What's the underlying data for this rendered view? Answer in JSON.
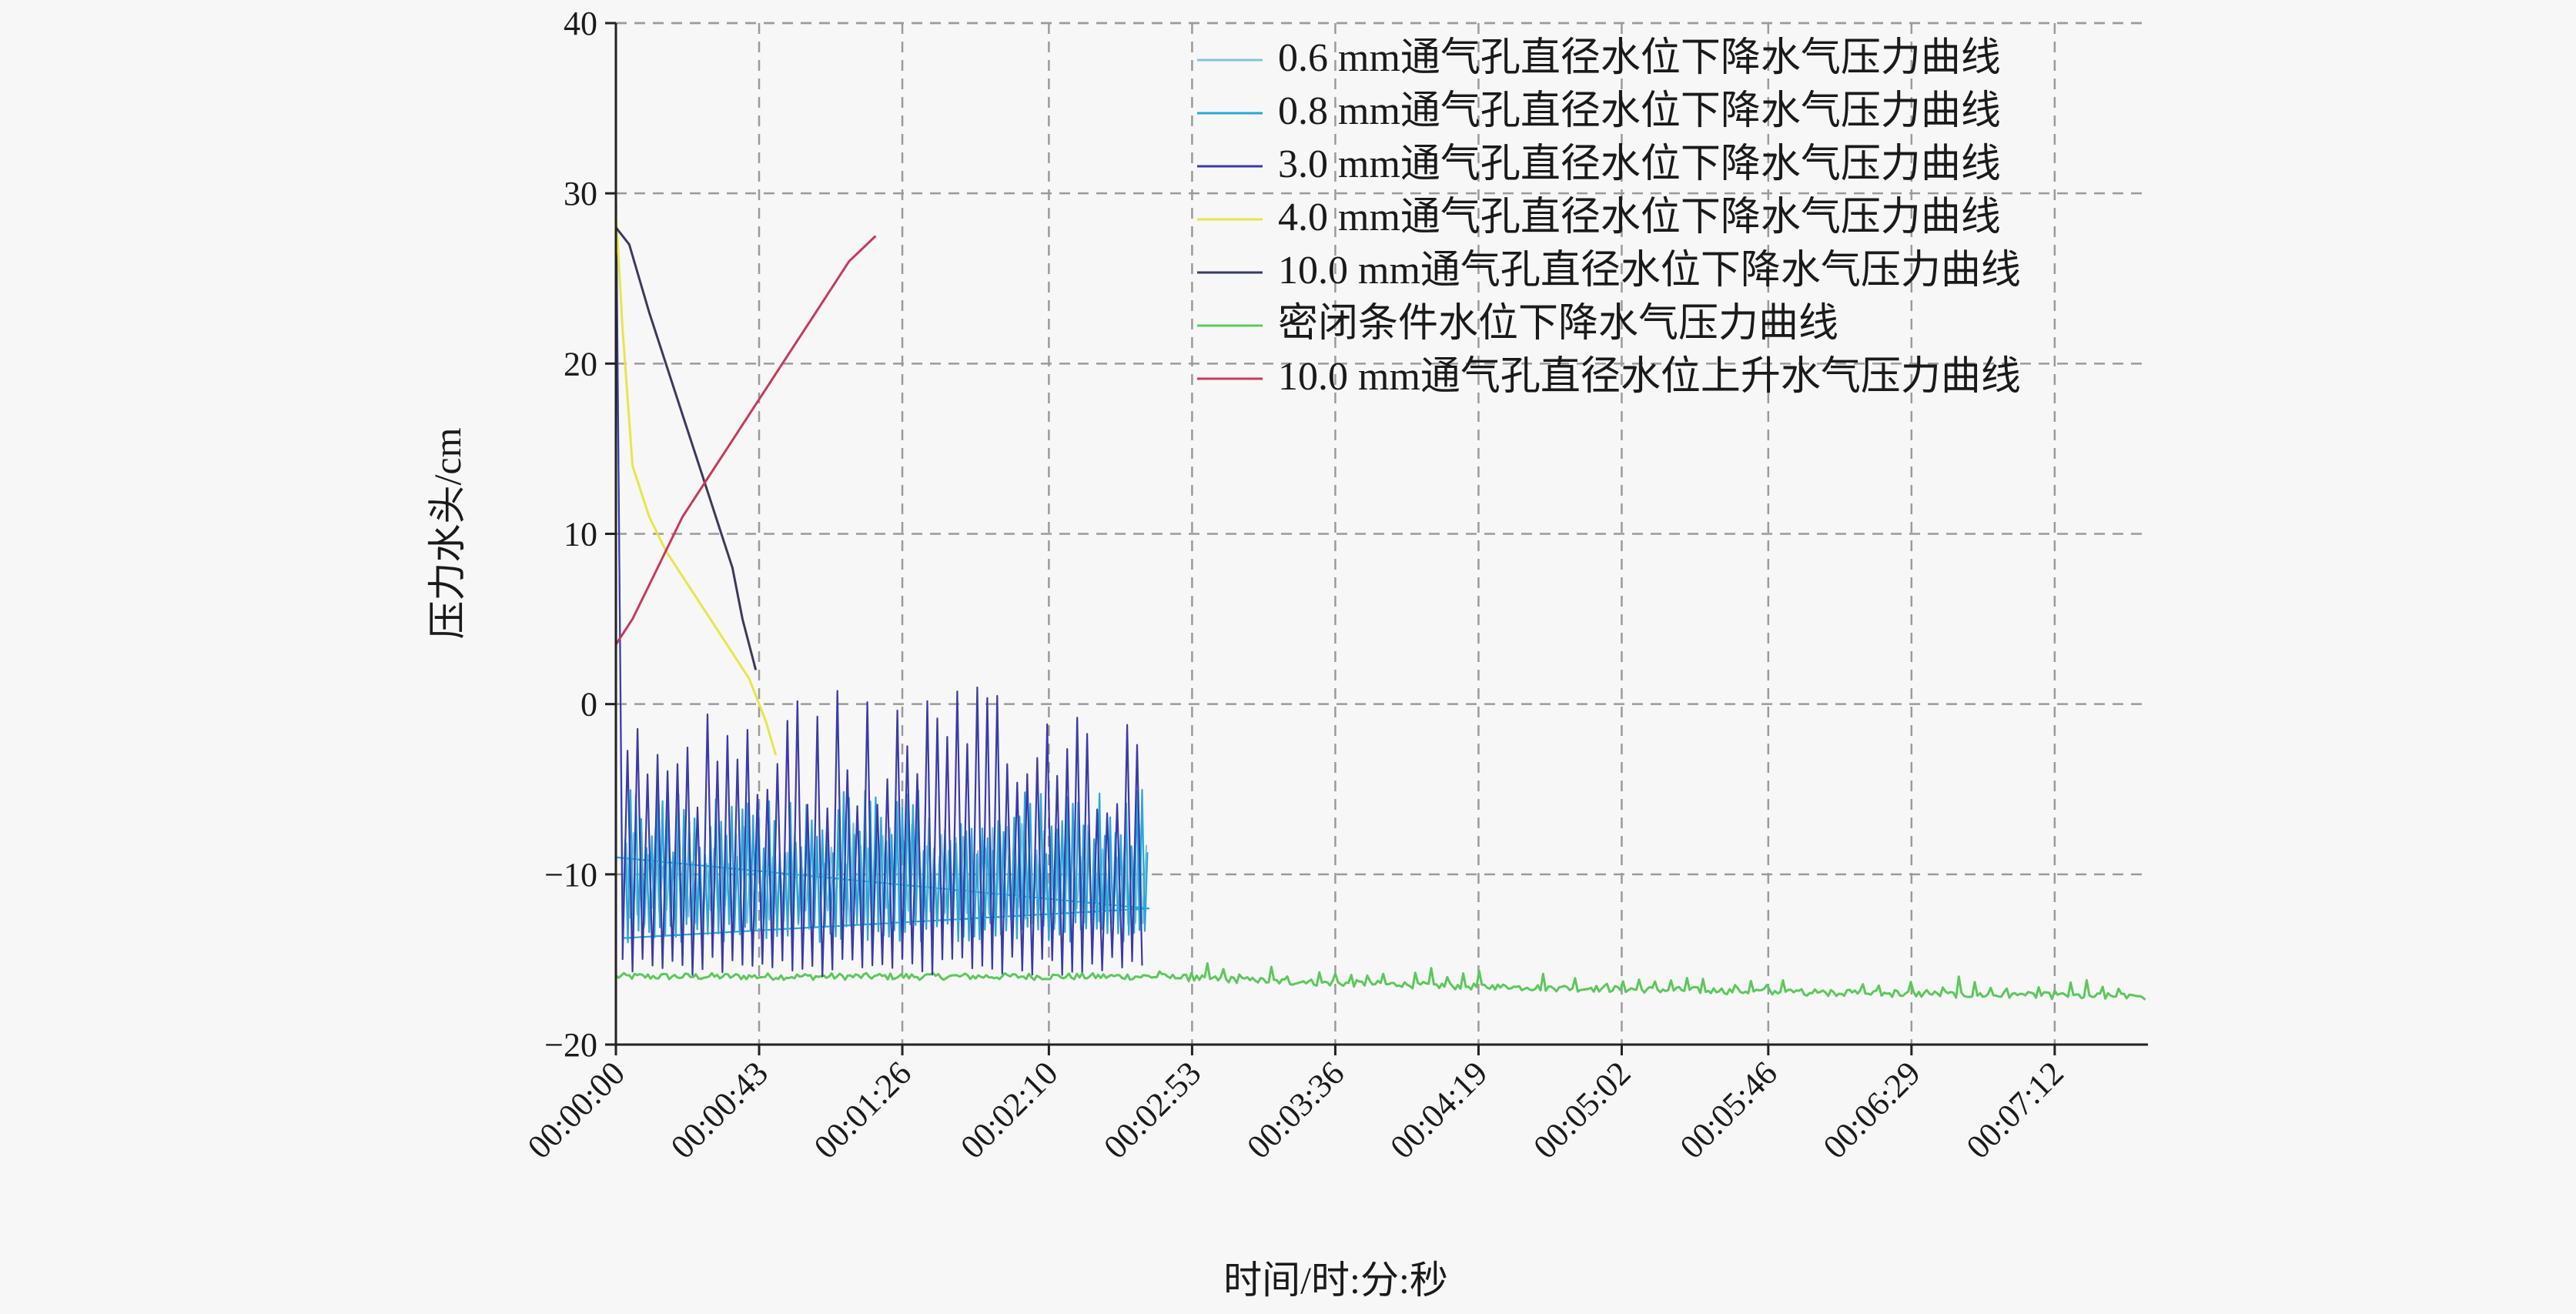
{
  "chart_data": {
    "type": "line",
    "xlabel": "时间/时:分:秒",
    "ylabel": "压力水头/cm",
    "ylim": [
      -20,
      40
    ],
    "yticks": [
      -20,
      -10,
      0,
      10,
      20,
      30,
      40
    ],
    "xlim_seconds": [
      0,
      460
    ],
    "xtick_labels": [
      "00:00:00",
      "00:00:43",
      "00:01:26",
      "00:02:10",
      "00:02:53",
      "00:03:36",
      "00:04:19",
      "00:05:02",
      "00:05:46",
      "00:06:29",
      "00:07:12"
    ],
    "xtick_seconds": [
      0,
      43,
      86,
      130,
      173,
      216,
      259,
      302,
      346,
      389,
      432
    ],
    "grid": true,
    "legend_position": "top-right",
    "series": [
      {
        "name": "0.6 mm通气孔直径水位下降水气压力曲线",
        "color": "#7fc6d6",
        "kind": "oscillating",
        "points": [
          [
            0,
            30
          ],
          [
            2,
            -12
          ],
          [
            160,
            -12
          ]
        ],
        "oscillation": {
          "start": 2,
          "end": 160,
          "low": -13,
          "high": -7,
          "period": 2.2
        }
      },
      {
        "name": "0.8 mm通气孔直径水位下降水气压力曲线",
        "color": "#27a8d8",
        "kind": "oscillating",
        "points": [
          [
            0,
            -9
          ],
          [
            160,
            -12
          ]
        ],
        "oscillation": {
          "start": 2,
          "end": 160,
          "low": -14,
          "high": -5,
          "period": 1.6
        }
      },
      {
        "name": "3.0 mm通气孔直径水位下降水气压力曲线",
        "color": "#3a3aa8",
        "kind": "oscillating",
        "points": [
          [
            0,
            32
          ],
          [
            2,
            -14
          ],
          [
            160,
            -14
          ]
        ],
        "oscillation": {
          "start": 2,
          "end": 158,
          "low": -16,
          "high": 1,
          "period": 3.0
        }
      },
      {
        "name": "4.0 mm通气孔直径水位下降水气压力曲线",
        "color": "#e6e64a",
        "kind": "line",
        "points": [
          [
            0,
            29
          ],
          [
            2,
            22
          ],
          [
            5,
            14
          ],
          [
            10,
            11
          ],
          [
            15,
            9
          ],
          [
            20,
            7.5
          ],
          [
            25,
            6
          ],
          [
            30,
            4.5
          ],
          [
            35,
            3
          ],
          [
            40,
            1.5
          ],
          [
            45,
            -1
          ],
          [
            48,
            -3
          ]
        ]
      },
      {
        "name": "10.0 mm通气孔直径水位下降水气压力曲线",
        "color": "#3a3a5c",
        "kind": "line",
        "points": [
          [
            0,
            28
          ],
          [
            4,
            27
          ],
          [
            10,
            23
          ],
          [
            15,
            20
          ],
          [
            20,
            17
          ],
          [
            25,
            14
          ],
          [
            30,
            11
          ],
          [
            35,
            8
          ],
          [
            38,
            5
          ],
          [
            42,
            2
          ]
        ]
      },
      {
        "name": "密闭条件水位下降水气压力曲线",
        "color": "#5cc85c",
        "kind": "decay",
        "points": [
          [
            0,
            -16
          ],
          [
            100,
            -16
          ],
          [
            160,
            -16
          ],
          [
            200,
            -16.3
          ],
          [
            260,
            -16.6
          ],
          [
            320,
            -16.8
          ],
          [
            380,
            -17
          ],
          [
            460,
            -17.2
          ]
        ],
        "noise": 0.4,
        "spikes_every": 6
      },
      {
        "name": "10.0 mm通气孔直径水位上升水气压力曲线",
        "color": "#c83a5a",
        "kind": "line",
        "points": [
          [
            0,
            3.5
          ],
          [
            5,
            5
          ],
          [
            10,
            7
          ],
          [
            15,
            9
          ],
          [
            20,
            11
          ],
          [
            25,
            12.5
          ],
          [
            30,
            14
          ],
          [
            35,
            15.5
          ],
          [
            40,
            17
          ],
          [
            45,
            18.5
          ],
          [
            50,
            20
          ],
          [
            55,
            21.5
          ],
          [
            60,
            23
          ],
          [
            65,
            24.5
          ],
          [
            70,
            26
          ],
          [
            78,
            27.5
          ]
        ]
      }
    ]
  }
}
